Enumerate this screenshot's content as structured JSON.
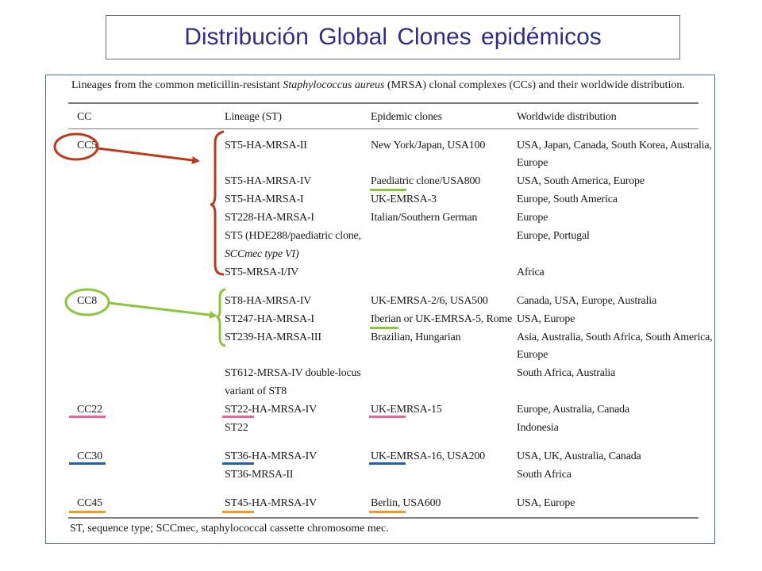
{
  "slide_title": "Distribución Global Clones epidémicos",
  "table": {
    "caption_before": "Lineages from the common meticillin-resistant ",
    "caption_italic": "Staphylococcus aureus",
    "caption_after": " (MRSA) clonal complexes (CCs) and their worldwide distribution.",
    "headers": [
      "CC",
      "Lineage (ST)",
      "Epidemic clones",
      "Worldwide distribution"
    ],
    "cc": [
      "CC5",
      "CC8",
      "CC22",
      "CC30",
      "CC45"
    ],
    "lineage": [
      "ST5-HA-MRSA-II",
      "ST5-HA-MRSA-IV",
      "ST5-HA-MRSA-I",
      "ST228-HA-MRSA-I",
      "ST5 (HDE288/paediatric clone,",
      "SCCmec type VI)",
      "ST5-MRSA-I/IV",
      "ST8-HA-MRSA-IV",
      "ST247-HA-MRSA-I",
      "ST239-HA-MRSA-III",
      "ST612-MRSA-IV double-locus",
      "variant of ST8",
      "ST22-HA-MRSA-IV",
      "ST22",
      "ST36-HA-MRSA-IV",
      "ST36-MRSA-II",
      "ST45-HA-MRSA-IV"
    ],
    "clones": [
      "New York/Japan, USA100",
      "Paediatric clone/USA800",
      "UK-EMRSA-3",
      "Italian/Southern German",
      "UK-EMRSA-2/6, USA500",
      "Iberian or UK-EMRSA-5, Rome",
      "Brazilian, Hungarian",
      "UK-EMRSA-15",
      "UK-EMRSA-16, USA200",
      "Berlin, USA600"
    ],
    "distribution": [
      "USA, Japan, Canada, South Korea, Australia,",
      "Europe",
      "USA, South America, Europe",
      "Europe, South America",
      "Europe",
      "Europe, Portugal",
      "Africa",
      "Canada, USA, Europe, Australia",
      "USA, Europe",
      "Asia, Australia, South Africa, South America,",
      "Europe",
      "South Africa, Australia",
      "Europe, Australia, Canada",
      "Indonesia",
      "USA, UK, Australia, Canada",
      "South Africa",
      "USA, Europe"
    ],
    "footnote": "ST, sequence type; SCCmec, staphylococcal cassette chromosome mec."
  },
  "annotation_colors": {
    "cc5": "#c0391b",
    "cc8": "#8cc63e",
    "cc22": "#e8679a",
    "cc30": "#1f5fb4",
    "cc45": "#f29a1f"
  }
}
